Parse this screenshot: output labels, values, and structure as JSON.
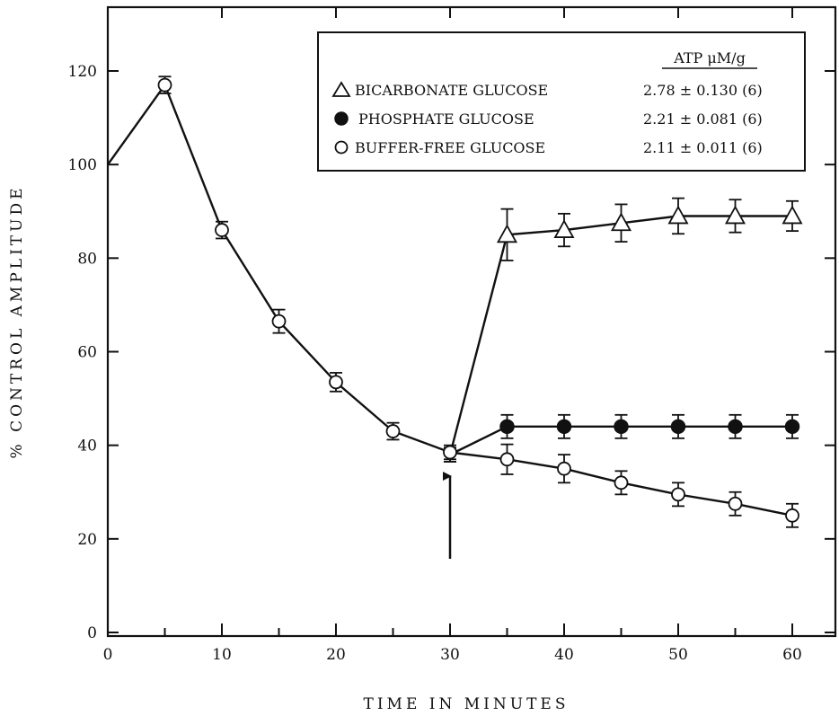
{
  "chart_data": {
    "type": "line",
    "xlabel": "TIME IN MINUTES",
    "ylabel": "% CONTROL AMPLITUDE",
    "xlim": [
      0,
      60
    ],
    "ylim": [
      0,
      130
    ],
    "xticks": [
      0,
      10,
      20,
      30,
      40,
      50,
      60
    ],
    "yticks": [
      0,
      20,
      40,
      60,
      80,
      100,
      120
    ],
    "xtick_labels": [
      "0",
      "10",
      "20",
      "30",
      "40",
      "50",
      "60"
    ],
    "ytick_labels": [
      "0",
      "20",
      "40",
      "60",
      "80",
      "100",
      "120"
    ],
    "grid": false,
    "legend_position": "top-right",
    "legend_header": "ATP μM/g",
    "annotation": "arrow at 30 minutes",
    "series": [
      {
        "name": "BICARBONATE GLUCOSE",
        "atp": "2.78 ± 0.130 (6)",
        "marker": "open-triangle",
        "x": [
          30,
          35,
          40,
          45,
          50,
          55,
          60
        ],
        "values": [
          38,
          85,
          86,
          87.5,
          89,
          89,
          89
        ],
        "errors": [
          1.5,
          5.5,
          3.5,
          4,
          3.8,
          3.5,
          3.2
        ]
      },
      {
        "name": "PHOSPHATE GLUCOSE",
        "atp": "2.21 ± 0.081 (6)",
        "marker": "filled-circle",
        "x": [
          30,
          35,
          40,
          45,
          50,
          55,
          60
        ],
        "values": [
          38,
          44,
          44,
          44,
          44,
          44,
          44
        ],
        "errors": [
          1.5,
          2.5,
          2.5,
          2.5,
          2.5,
          2.5,
          2.5
        ]
      },
      {
        "name": "BUFFER-FREE GLUCOSE",
        "atp": "2.11 ± 0.011 (6)",
        "marker": "open-circle",
        "x": [
          0,
          5,
          10,
          15,
          20,
          25,
          30,
          35,
          40,
          45,
          50,
          55,
          60
        ],
        "values": [
          100,
          117,
          86,
          66.5,
          53.5,
          43,
          38.5,
          37,
          35,
          32,
          29.5,
          27.5,
          25
        ],
        "errors": [
          0,
          1.8,
          1.8,
          2.5,
          2,
          1.8,
          1.5,
          3.2,
          3,
          2.5,
          2.5,
          2.5,
          2.5
        ]
      }
    ]
  }
}
